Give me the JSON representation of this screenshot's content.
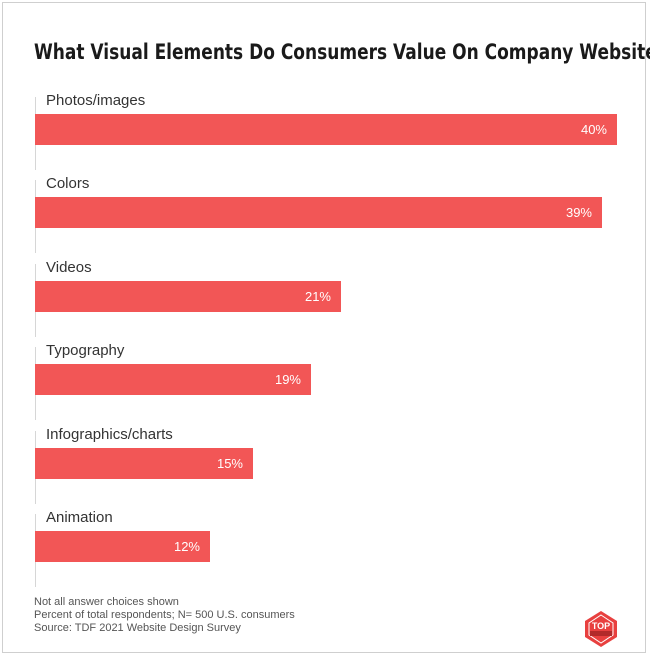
{
  "title": "What Visual Elements Do Consumers Value On Company Websites?",
  "colors": {
    "bar": "#f25656",
    "bar_text": "#ffffff",
    "title": "#1a1a1a",
    "label": "#333333",
    "gridline": "#d6d6d6",
    "footnote": "#555555"
  },
  "chart_data": {
    "type": "bar",
    "orientation": "horizontal",
    "title": "What Visual Elements Do Consumers Value On Company Websites?",
    "categories": [
      "Photos/images",
      "Colors",
      "Videos",
      "Typography",
      "Infographics/charts",
      "Animation"
    ],
    "values": [
      40,
      39,
      21,
      19,
      15,
      12
    ],
    "value_labels": [
      "40%",
      "39%",
      "21%",
      "19%",
      "15%",
      "12%"
    ],
    "unit": "%",
    "xlim": [
      0,
      40
    ],
    "xlabel": "",
    "ylabel": "",
    "grid": false,
    "legend": "none"
  },
  "footnotes": [
    "Not all answer choices shown",
    "Percent of total respondents; N= 500 U.S. consumers",
    "Source: TDF 2021 Website Design Survey"
  ],
  "logo": {
    "icon": "top-design-firms-badge-icon",
    "text": "TOP"
  }
}
